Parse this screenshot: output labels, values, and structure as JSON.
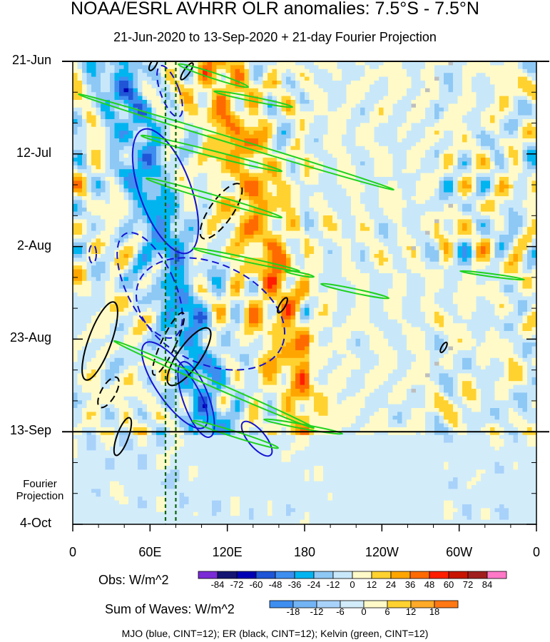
{
  "chart_data": {
    "type": "heatmap",
    "title": "NOAA/ESRL AVHRR OLR anomalies: 7.5°S - 7.5°N",
    "subtitle": "21-Jun-2020 to 13-Sep-2020 + 21-day Fourier Projection",
    "y_tick_labels": [
      "21-Jun",
      "12-Jul",
      "2-Aug",
      "23-Aug",
      "13-Sep",
      "4-Oct"
    ],
    "y_axis_extra_label": "Fourier Projection",
    "x_tick_labels": [
      "0",
      "60E",
      "120E",
      "180",
      "120W",
      "60W",
      "0"
    ],
    "x_range_degrees_east": [
      0,
      360
    ],
    "time_range": [
      "21-Jun-2020",
      "4-Oct-2020"
    ],
    "observation_end": "13-Sep-2020",
    "projection_days": 21,
    "obs_colorbar": {
      "label": "Obs: W/m^2",
      "ticks": [
        -84,
        -72,
        -60,
        -48,
        -36,
        -24,
        -12,
        0,
        12,
        24,
        36,
        48,
        60,
        72,
        84
      ],
      "colors": [
        "#7a2bd6",
        "#141473",
        "#0000b4",
        "#1f55d6",
        "#3e8ef0",
        "#00b4f0",
        "#8ec8f5",
        "#c8e8fa",
        "#fffac8",
        "#ffd230",
        "#ffa500",
        "#ff6a00",
        "#ff1e00",
        "#c81400",
        "#a01e1e",
        "#ff78c8"
      ]
    },
    "waves_colorbar": {
      "label": "Sum of Waves: W/m^2",
      "ticks": [
        -18,
        -12,
        -6,
        0,
        6,
        12,
        18
      ],
      "colors": [
        "#3e8ef0",
        "#73b4f5",
        "#a8d2fa",
        "#d2ecfa",
        "#fffac8",
        "#ffd230",
        "#ffaa28",
        "#ff7814"
      ]
    },
    "contour_series": [
      {
        "name": "MJO",
        "color": "#1414d2"
      },
      {
        "name": "ER",
        "color": "#000000"
      },
      {
        "name": "Kelvin",
        "color": "#1ed21e"
      }
    ],
    "reference_lines_lon": [
      72,
      80
    ],
    "missing_color": "#bebebe"
  },
  "footnote": "MJO (blue, CINT=12); ER (black, CINT=12); Kelvin (green, CINT=12)"
}
